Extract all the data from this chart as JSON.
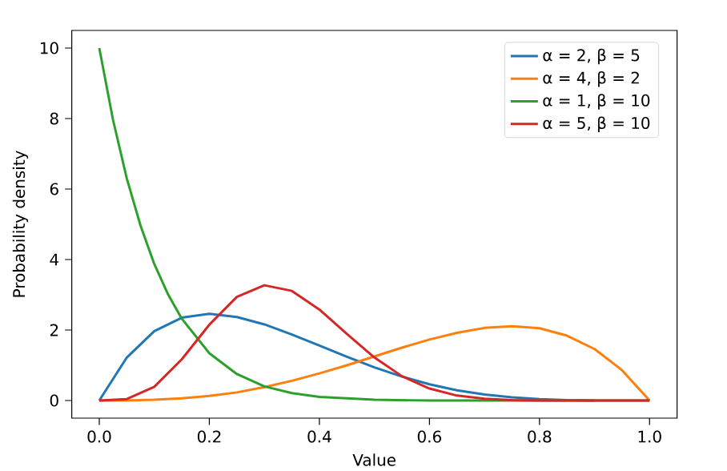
{
  "chart_data": {
    "type": "line",
    "xlabel": "Value",
    "ylabel": "Probability density",
    "xlim": [
      -0.05,
      1.05
    ],
    "ylim": [
      -0.5,
      10.5
    ],
    "xticks": [
      {
        "value": 0,
        "label": "0.0"
      },
      {
        "value": 0.2,
        "label": "0.2"
      },
      {
        "value": 0.4,
        "label": "0.4"
      },
      {
        "value": 0.6,
        "label": "0.6"
      },
      {
        "value": 0.8,
        "label": "0.8"
      },
      {
        "value": 1,
        "label": "1.0"
      }
    ],
    "yticks": [
      0,
      2,
      4,
      6,
      8,
      10
    ],
    "legend": "top right",
    "grid": false,
    "marker": "none",
    "line_style": "solid",
    "series": [
      {
        "name": "α = 2, β = 5",
        "color": "#1f77b4",
        "x": [
          0,
          0.05,
          0.1,
          0.15,
          0.2,
          0.25,
          0.3,
          0.35,
          0.4,
          0.45,
          0.5,
          0.55,
          0.6,
          0.65,
          0.7,
          0.75,
          0.8,
          0.85,
          0.9
        ],
        "values": [
          0,
          1.22,
          1.97,
          2.35,
          2.46,
          2.37,
          2.16,
          1.87,
          1.56,
          1.24,
          0.94,
          0.68,
          0.46,
          0.29,
          0.17,
          0.09,
          0.04,
          0.01,
          0
        ]
      },
      {
        "name": "α = 4, β = 2",
        "color": "#ff7f0e",
        "x": [
          0,
          0.05,
          0.1,
          0.15,
          0.2,
          0.25,
          0.3,
          0.35,
          0.4,
          0.45,
          0.5,
          0.55,
          0.6,
          0.65,
          0.7,
          0.75,
          0.8,
          0.85,
          0.9,
          0.95,
          1
        ],
        "values": [
          0,
          0,
          0.02,
          0.06,
          0.13,
          0.23,
          0.38,
          0.56,
          0.77,
          1.0,
          1.25,
          1.5,
          1.73,
          1.92,
          2.06,
          2.11,
          2.05,
          1.84,
          1.46,
          0.86,
          0
        ]
      },
      {
        "name": "α = 1, β = 10",
        "color": "#2ca02c",
        "x": [
          0,
          0.025,
          0.05,
          0.075,
          0.1,
          0.125,
          0.15,
          0.2,
          0.25,
          0.3,
          0.35,
          0.4,
          0.5,
          0.6,
          0.8,
          1
        ],
        "values": [
          10,
          7.96,
          6.3,
          4.96,
          3.87,
          3.01,
          2.32,
          1.34,
          0.75,
          0.4,
          0.21,
          0.1,
          0.02,
          0,
          0,
          0
        ]
      },
      {
        "name": "α = 5, β = 10",
        "color": "#d62728",
        "x": [
          0,
          0.05,
          0.1,
          0.15,
          0.2,
          0.25,
          0.3,
          0.35,
          0.4,
          0.45,
          0.5,
          0.55,
          0.6,
          0.65,
          0.7,
          0.75,
          0.8,
          0.9,
          1
        ],
        "values": [
          0,
          0.04,
          0.39,
          1.17,
          2.15,
          2.94,
          3.27,
          3.11,
          2.58,
          1.89,
          1.22,
          0.69,
          0.34,
          0.14,
          0.05,
          0.01,
          0,
          0,
          0
        ]
      }
    ]
  }
}
